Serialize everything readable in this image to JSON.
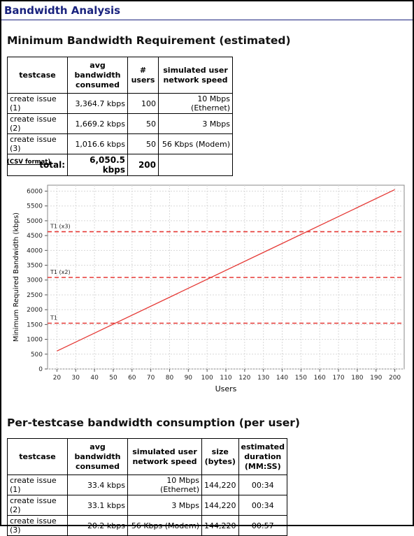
{
  "page": {
    "title": "Bandwidth Analysis"
  },
  "min_section": {
    "heading": "Minimum Bandwidth Requirement (estimated)",
    "headers": [
      "testcase",
      "avg bandwidth consumed",
      "# users",
      "simulated user network speed"
    ],
    "rows": [
      {
        "testcase": "create issue (1)",
        "bandwidth": "3,364.7 kbps",
        "users": "100",
        "speed": "10 Mbps (Ethernet)"
      },
      {
        "testcase": "create issue (2)",
        "bandwidth": "1,669.2 kbps",
        "users": "50",
        "speed": "3 Mbps"
      },
      {
        "testcase": "create issue (3)",
        "bandwidth": "1,016.6 kbps",
        "users": "50",
        "speed": "56 Kbps (Modem)"
      }
    ],
    "total": {
      "label": "total:",
      "bandwidth": "6,050.5 kbps",
      "users": "200"
    },
    "csv_link": "(CSV format)"
  },
  "chart_data": {
    "type": "line",
    "xlabel": "Users",
    "ylabel": "Minimum Required Bandwidth (kbps)",
    "xlim": [
      15,
      205
    ],
    "ylim": [
      0,
      6200
    ],
    "xticks": [
      20,
      30,
      40,
      50,
      60,
      70,
      80,
      90,
      100,
      110,
      120,
      130,
      140,
      150,
      160,
      170,
      180,
      190,
      200
    ],
    "yticks": [
      0,
      500,
      1000,
      1500,
      2000,
      2500,
      3000,
      3500,
      4000,
      4500,
      5000,
      5500,
      6000
    ],
    "grid": true,
    "series": [
      {
        "x": [
          20,
          200
        ],
        "y": [
          605,
          6050.5
        ],
        "color": "#e53935"
      }
    ],
    "reference_lines": [
      {
        "label": "T1",
        "y": 1544,
        "color": "#e53935"
      },
      {
        "label": "T1 (x2)",
        "y": 3088,
        "color": "#e53935"
      },
      {
        "label": "T1 (x3)",
        "y": 4632,
        "color": "#e53935"
      }
    ]
  },
  "per_section": {
    "heading": "Per-testcase bandwidth consumption (per user)",
    "headers": [
      "testcase",
      "avg bandwidth consumed",
      "simulated user network speed",
      "size (bytes)",
      "estimated duration (MM:SS)"
    ],
    "rows": [
      {
        "testcase": "create issue (1)",
        "bandwidth": "33.4 kbps",
        "speed": "10 Mbps (Ethernet)",
        "size": "144,220",
        "duration": "00:34"
      },
      {
        "testcase": "create issue (2)",
        "bandwidth": "33.1 kbps",
        "speed": "3 Mbps",
        "size": "144,220",
        "duration": "00:34"
      },
      {
        "testcase": "create issue (3)",
        "bandwidth": "20.2 kbps",
        "speed": "56 Kbps (Modem)",
        "size": "144,220",
        "duration": "00:57"
      }
    ]
  }
}
